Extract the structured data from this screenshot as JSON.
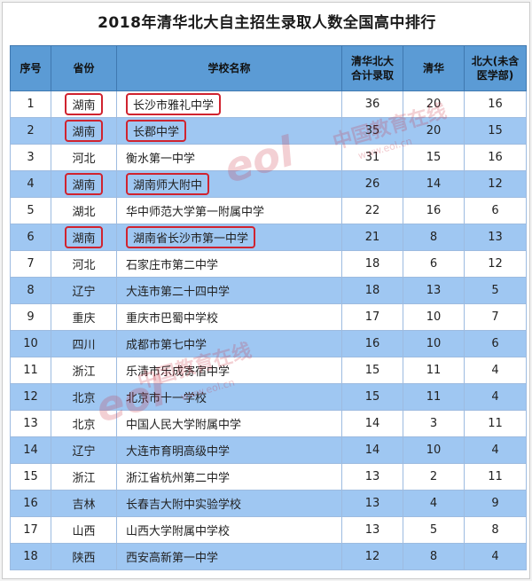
{
  "title": "2018年清华北大自主招生录取人数全国高中排行",
  "headers": {
    "rank": "序号",
    "province": "省份",
    "school": "学校名称",
    "total_line1": "清华北大",
    "total_line2": "合计录取",
    "tsinghua": "清华",
    "pku_line1": "北大(未含",
    "pku_line2": "医学部)"
  },
  "rows": [
    {
      "rank": "1",
      "province": "湖南",
      "school": "长沙市雅礼中学",
      "total": "36",
      "tsinghua": "20",
      "pku": "16"
    },
    {
      "rank": "2",
      "province": "湖南",
      "school": "长郡中学",
      "total": "35",
      "tsinghua": "20",
      "pku": "15"
    },
    {
      "rank": "3",
      "province": "河北",
      "school": "衡水第一中学",
      "total": "31",
      "tsinghua": "15",
      "pku": "16"
    },
    {
      "rank": "4",
      "province": "湖南",
      "school": "湖南师大附中",
      "total": "26",
      "tsinghua": "14",
      "pku": "12"
    },
    {
      "rank": "5",
      "province": "湖北",
      "school": "华中师范大学第一附属中学",
      "total": "22",
      "tsinghua": "16",
      "pku": "6"
    },
    {
      "rank": "6",
      "province": "湖南",
      "school": "湖南省长沙市第一中学",
      "total": "21",
      "tsinghua": "8",
      "pku": "13"
    },
    {
      "rank": "7",
      "province": "河北",
      "school": "石家庄市第二中学",
      "total": "18",
      "tsinghua": "6",
      "pku": "12"
    },
    {
      "rank": "8",
      "province": "辽宁",
      "school": "大连市第二十四中学",
      "total": "18",
      "tsinghua": "13",
      "pku": "5"
    },
    {
      "rank": "9",
      "province": "重庆",
      "school": "重庆市巴蜀中学校",
      "total": "17",
      "tsinghua": "10",
      "pku": "7"
    },
    {
      "rank": "10",
      "province": "四川",
      "school": "成都市第七中学",
      "total": "16",
      "tsinghua": "10",
      "pku": "6"
    },
    {
      "rank": "11",
      "province": "浙江",
      "school": "乐清市乐成寄宿中学",
      "total": "15",
      "tsinghua": "11",
      "pku": "4"
    },
    {
      "rank": "12",
      "province": "北京",
      "school": "北京市十一学校",
      "total": "15",
      "tsinghua": "11",
      "pku": "4"
    },
    {
      "rank": "13",
      "province": "北京",
      "school": "中国人民大学附属中学",
      "total": "14",
      "tsinghua": "3",
      "pku": "11"
    },
    {
      "rank": "14",
      "province": "辽宁",
      "school": "大连市育明高级中学",
      "total": "14",
      "tsinghua": "10",
      "pku": "4"
    },
    {
      "rank": "15",
      "province": "浙江",
      "school": "浙江省杭州第二中学",
      "total": "13",
      "tsinghua": "2",
      "pku": "11"
    },
    {
      "rank": "16",
      "province": "吉林",
      "school": "长春吉大附中实验学校",
      "total": "13",
      "tsinghua": "4",
      "pku": "9"
    },
    {
      "rank": "17",
      "province": "山西",
      "school": "山西大学附属中学校",
      "total": "13",
      "tsinghua": "5",
      "pku": "8"
    },
    {
      "rank": "18",
      "province": "陕西",
      "school": "西安高新第一中学",
      "total": "12",
      "tsinghua": "8",
      "pku": "4"
    }
  ],
  "highlighted_ranks": [
    "1",
    "2",
    "4",
    "6"
  ],
  "watermark": {
    "text": "中国教育在线",
    "sub": "www.eol.cn",
    "logo": "eol"
  },
  "colors": {
    "header": "#5b9bd5",
    "row_alt": "#9fc7f2",
    "highlight": "#d0232f"
  }
}
